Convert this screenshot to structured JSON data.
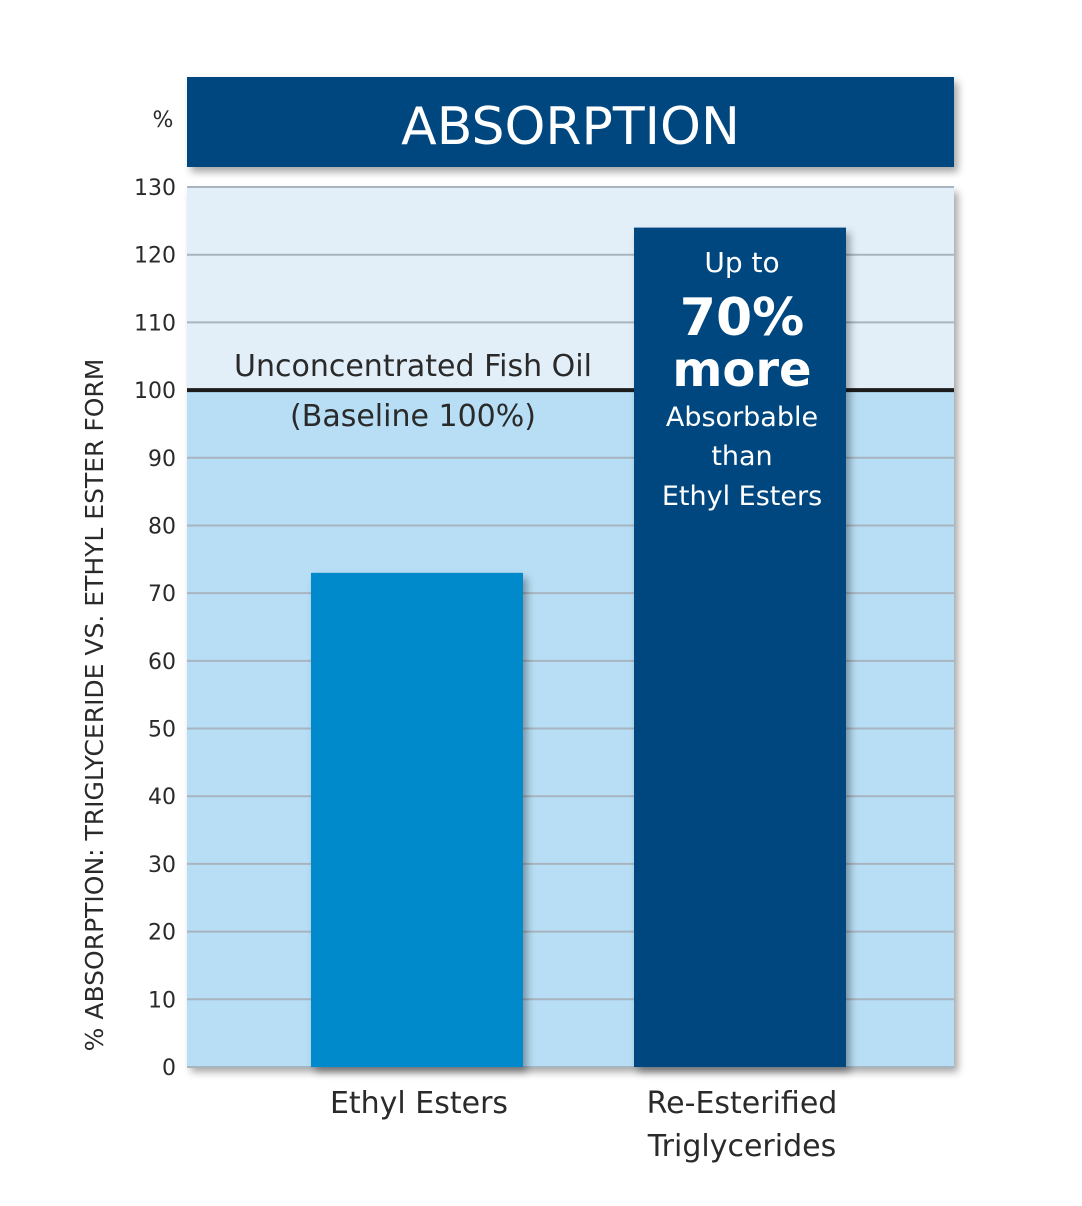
{
  "chart_data": {
    "type": "bar",
    "title": "ABSORPTION",
    "unit_label": "%",
    "ylabel": "% ABSORPTION: TRIGLYCERIDE VS. ETHYL ESTER FORM",
    "xlabel": "",
    "categories": [
      [
        "Ethyl Esters"
      ],
      [
        "Re-Esterified",
        "Triglycerides"
      ]
    ],
    "values": [
      73,
      124
    ],
    "ylim": [
      0,
      130
    ],
    "yticks": [
      0,
      10,
      20,
      30,
      40,
      50,
      60,
      70,
      80,
      90,
      100,
      110,
      120,
      130
    ],
    "grid": true,
    "baseline": {
      "value": 100,
      "label_line1": "Unconcentrated Fish Oil",
      "label_line2": "(Baseline 100%)"
    },
    "annotation": {
      "line1": "Up to",
      "line2": "70%",
      "line3": "more",
      "line4": "Absorbable",
      "line5": "than",
      "line6": "Ethyl Esters"
    },
    "colors": {
      "title_bg": "#04467f",
      "plot_upper": "#e2eef8",
      "plot_lower": "#b7def5",
      "grid": "#a8b4bf",
      "baseline": "#1c1c1c",
      "bar_ethyl": "#0489cb",
      "bar_tg": "#04467f",
      "text": "#2a2a2a",
      "annotation_text": "#ffffff"
    }
  }
}
